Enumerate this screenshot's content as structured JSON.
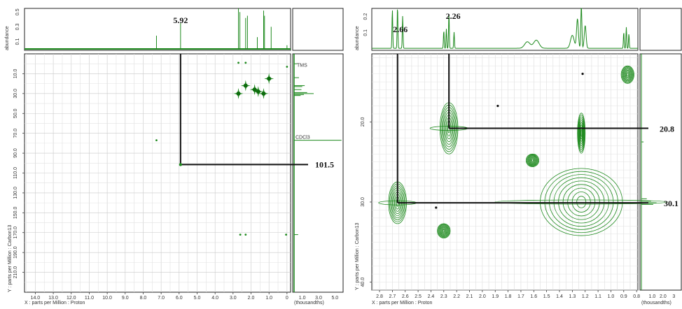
{
  "chart_data": [
    {
      "type": "scatter",
      "title": "",
      "xlabel": "X : parts per Million : Proton",
      "ylabel": "Y : parts per Million : Carbon13",
      "top_axis_label": "abundance",
      "side_axis_label": "(thousandths)",
      "x_ticks": [
        "14.0",
        "13.0",
        "12.0",
        "11.0",
        "10.0",
        "9.0",
        "8.0",
        "7.0",
        "6.0",
        "5.0",
        "4.0",
        "3.0",
        "2.0",
        "1.0",
        "0"
      ],
      "y_ticks": [
        "10.0",
        "30.0",
        "50.0",
        "70.0",
        "90.0",
        "110.0",
        "130.0",
        "150.0",
        "170.0",
        "190.0",
        "210.0"
      ],
      "top_ticks": [
        "0.5",
        "0.3",
        "0.1"
      ],
      "side_ticks": [
        "1.0",
        "3.0",
        "5.0"
      ],
      "xlim": [
        14.6,
        -0.2
      ],
      "ylim": [
        -10,
        230
      ],
      "annotations": {
        "proton_shift": "5.92",
        "carbon_shift": "101.5",
        "tms": "TMS",
        "solvent": "CDCl3"
      },
      "cross_peak": {
        "x": 5.92,
        "y": 101.5
      },
      "peaks": [
        {
          "x": 2.3,
          "y": 22
        },
        {
          "x": 2.7,
          "y": 30
        },
        {
          "x": 1.3,
          "y": 30
        },
        {
          "x": 1.6,
          "y": 28
        },
        {
          "x": 1.0,
          "y": 15
        },
        {
          "x": 1.8,
          "y": 26
        },
        {
          "x": 7.26,
          "y": 77
        },
        {
          "x": 2.7,
          "y": -1
        },
        {
          "x": 2.3,
          "y": -1
        },
        {
          "x": 2.6,
          "y": 172
        },
        {
          "x": 2.3,
          "y": 172
        },
        {
          "x": 0.05,
          "y": 172
        },
        {
          "x": 0.0,
          "y": 3
        }
      ],
      "proton_peaks_ppm": [
        7.26,
        5.92,
        2.7,
        2.62,
        2.3,
        2.2,
        1.65,
        1.3,
        1.25,
        0.88,
        0.0
      ],
      "carbon_peaks_ppm": [
        0,
        14,
        22,
        23,
        26,
        29,
        30,
        31,
        32,
        77,
        101.5,
        172
      ]
    },
    {
      "type": "scatter",
      "title": "",
      "xlabel": "X : parts per Million : Proton",
      "ylabel": "Y : parts per Million : Carbon13",
      "top_axis_label": "abundance",
      "side_axis_label": "(thousandths)",
      "x_ticks": [
        "2.8",
        "2.7",
        "2.6",
        "2.5",
        "2.4",
        "2.3",
        "2.2",
        "2.1",
        "2.0",
        "1.9",
        "1.8",
        "1.7",
        "1.6",
        "1.5",
        "1.4",
        "1.3",
        "1.2",
        "1.1",
        "1.0",
        "0.9",
        "0.8"
      ],
      "y_ticks": [
        "20.0",
        "30.0",
        "40.0"
      ],
      "top_ticks": [
        "0.2",
        "0.1"
      ],
      "side_ticks": [
        "1.0",
        "2.0",
        "3"
      ],
      "xlim": [
        2.86,
        0.79
      ],
      "ylim": [
        11.5,
        41
      ],
      "annotations": {
        "proton_a": "2.66",
        "proton_b": "2.26",
        "carbon_a": "20.8",
        "carbon_b": "30.1"
      },
      "guides": [
        {
          "x": 2.66,
          "y": 30.1
        },
        {
          "x": 2.26,
          "y": 20.8
        }
      ],
      "contour_peaks": [
        {
          "x": 2.66,
          "y": 30.1,
          "rx": 0.07,
          "ry": 2.6
        },
        {
          "x": 2.26,
          "y": 20.8,
          "rx": 0.07,
          "ry": 3.2
        },
        {
          "x": 1.23,
          "y": 30.0,
          "rx": 0.32,
          "ry": 4.2
        },
        {
          "x": 1.23,
          "y": 21.4,
          "rx": 0.03,
          "ry": 2.5
        },
        {
          "x": 1.61,
          "y": 24.8,
          "rx": 0.05,
          "ry": 0.8
        },
        {
          "x": 0.87,
          "y": 14.1,
          "rx": 0.05,
          "ry": 1.1
        },
        {
          "x": 2.3,
          "y": 33.6,
          "rx": 0.05,
          "ry": 0.9
        }
      ],
      "dots": [
        {
          "x": 1.88,
          "y": 18.0
        },
        {
          "x": 2.36,
          "y": 30.7
        },
        {
          "x": 1.22,
          "y": 14.0
        }
      ]
    }
  ]
}
